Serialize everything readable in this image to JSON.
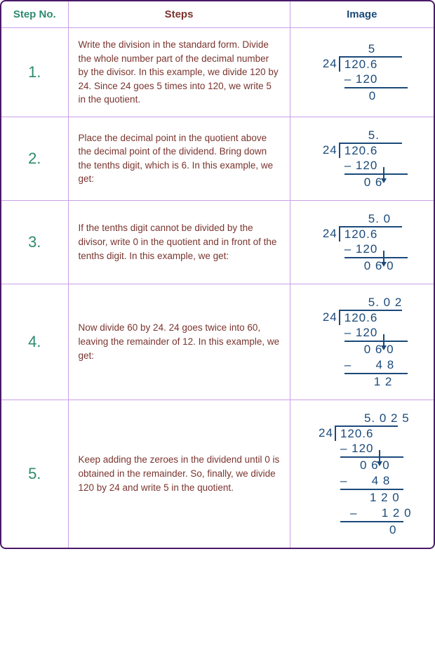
{
  "headers": {
    "col1": "Step No.",
    "col2": "Steps",
    "col3": "Image"
  },
  "colors": {
    "border_outer": "#4a1968",
    "border_inner": "#c9a0e8",
    "step_no": "#2d8a6f",
    "step_text": "#7a342e",
    "math": "#1a4a7a"
  },
  "rows": [
    {
      "no": "1.",
      "text": "Write the division in the standard form. Divide the whole number part of the decimal number by the divisor. In this example, we divide 120 by 24. Since 24 goes 5 times into 120, we write 5 in the quotient.",
      "div": {
        "quotient": "5",
        "divisor": "24",
        "dividend": "120.6",
        "lines": [
          {
            "type": "sub",
            "text": "– 120",
            "indent": 0
          },
          {
            "type": "hr"
          },
          {
            "type": "res",
            "text": "0",
            "indent": 35
          }
        ],
        "arrow": false
      }
    },
    {
      "no": "2.",
      "text": "Place the decimal point in the quotient above the decimal point of the dividend. Bring down the tenths digit, which is 6. In this example, we get:",
      "div": {
        "quotient": "5.",
        "divisor": "24",
        "dividend": "120.6",
        "lines": [
          {
            "type": "sub",
            "text": "– 120",
            "indent": 0,
            "arrow": true
          },
          {
            "type": "hr"
          },
          {
            "type": "res",
            "text": "0 6",
            "indent": 28
          }
        ],
        "arrow": true
      }
    },
    {
      "no": "3.",
      "text": "If the tenths digit cannot be divided by the divisor, write 0 in the quotient and in front of the tenths digit. In this example, we get:",
      "div": {
        "quotient": "5. 0",
        "divisor": "24",
        "dividend": "120.6",
        "lines": [
          {
            "type": "sub",
            "text": "– 120",
            "indent": 0,
            "arrow": true
          },
          {
            "type": "hr"
          },
          {
            "type": "res",
            "text": "0 6 0",
            "indent": 28
          }
        ],
        "arrow": true
      }
    },
    {
      "no": "4.",
      "text": "Now divide 60 by 24. 24 goes twice into 60, leaving the remainder of 12. In this example, we get:",
      "div": {
        "quotient": "5. 0 2",
        "divisor": "24",
        "dividend": "120.6",
        "lines": [
          {
            "type": "sub",
            "text": "– 120",
            "indent": 0,
            "arrow": true
          },
          {
            "type": "hr"
          },
          {
            "type": "res",
            "text": "0 6 0",
            "indent": 28
          },
          {
            "type": "sub",
            "text": "–      4 8",
            "indent": 0
          },
          {
            "type": "hr"
          },
          {
            "type": "res",
            "text": "1 2",
            "indent": 42
          }
        ],
        "arrow": true
      }
    },
    {
      "no": "5.",
      "text": "Keep adding the zeroes in the dividend until 0 is obtained in the remainder. So, finally, we divide 120 by 24 and write 5 in the quotient.",
      "div": {
        "quotient": "5. 0 2 5",
        "divisor": "24",
        "dividend": "120.6",
        "lines": [
          {
            "type": "sub",
            "text": "– 120",
            "indent": 0,
            "arrow": true
          },
          {
            "type": "hr"
          },
          {
            "type": "res",
            "text": "0 6 0",
            "indent": 28
          },
          {
            "type": "sub",
            "text": "–      4 8",
            "indent": 0
          },
          {
            "type": "hr"
          },
          {
            "type": "res",
            "text": "1 2 0",
            "indent": 42
          },
          {
            "type": "sub",
            "text": "–      1 2 0",
            "indent": 14
          },
          {
            "type": "hr"
          },
          {
            "type": "res",
            "text": "0",
            "indent": 70
          }
        ],
        "arrow": true
      }
    }
  ]
}
